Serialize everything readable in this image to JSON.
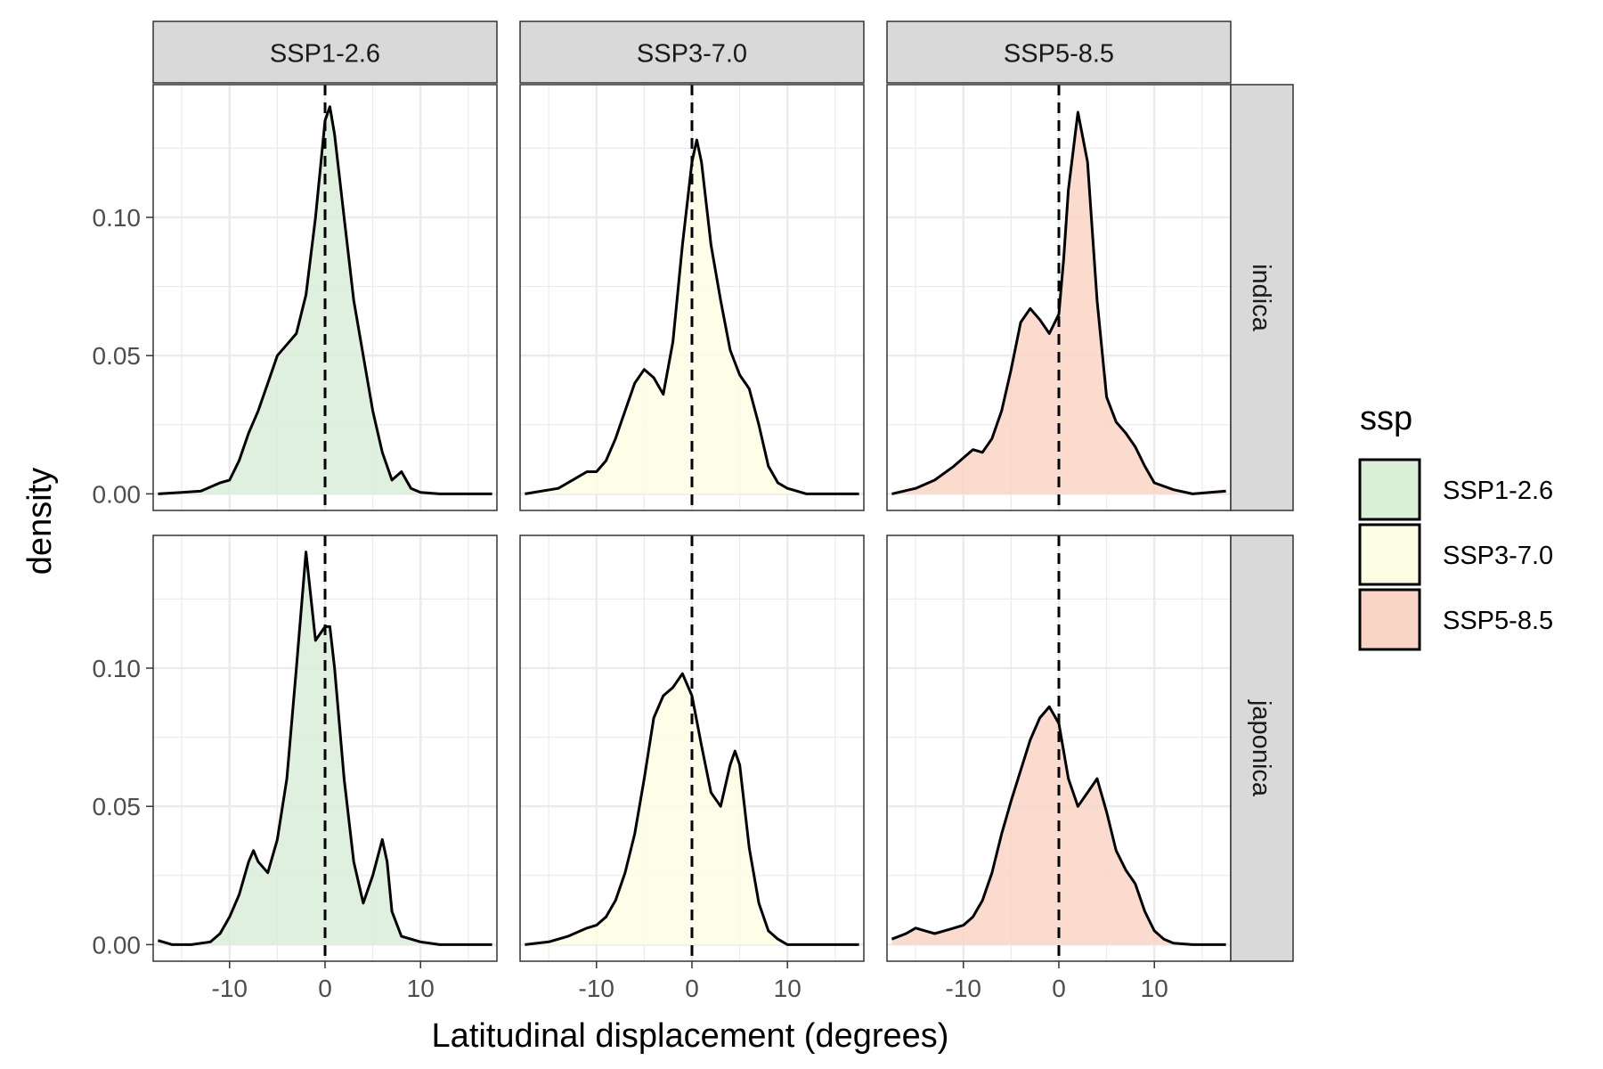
{
  "colors": {
    "SSP1-2.6": "#d9efd8",
    "SSP3-7.0": "#fdfde4",
    "SSP5-8.5": "#f9d5c6",
    "strip_bg": "#d9d9d9",
    "grid": "#ebebeb",
    "line": "#000000"
  },
  "chart_data": {
    "type": "area",
    "subtype": "density",
    "xlabel": "Latitudinal displacement (degrees)",
    "ylabel": "density",
    "xlim": [
      -18,
      18
    ],
    "ylim": [
      -0.006,
      0.148
    ],
    "x_ticks": [
      -10,
      0,
      10
    ],
    "x_tick_labels": [
      "-10",
      "0",
      "10"
    ],
    "y_ticks": [
      0,
      0.05,
      0.1
    ],
    "y_tick_labels": [
      "0.00",
      "0.05",
      "0.10"
    ],
    "grid": true,
    "reference_line": {
      "x": 0,
      "style": "dashed"
    },
    "col_facets": [
      "SSP1-2.6",
      "SSP3-7.0",
      "SSP5-8.5"
    ],
    "row_facets": [
      "indica",
      "japonica"
    ],
    "legend": {
      "title": "ssp",
      "position": "right",
      "entries": [
        "SSP1-2.6",
        "SSP3-7.0",
        "SSP5-8.5"
      ]
    },
    "panels": [
      {
        "row": "indica",
        "col": "SSP1-2.6",
        "x": [
          -17.5,
          -15,
          -13,
          -11,
          -10,
          -9,
          -8,
          -7,
          -6,
          -5,
          -4,
          -3,
          -2,
          -1,
          0,
          0.5,
          1,
          2,
          3,
          4,
          5,
          6,
          7,
          8,
          9,
          10,
          12,
          14,
          17.5
        ],
        "y": [
          0,
          0.0005,
          0.001,
          0.004,
          0.005,
          0.012,
          0.022,
          0.03,
          0.04,
          0.05,
          0.054,
          0.058,
          0.072,
          0.1,
          0.135,
          0.14,
          0.13,
          0.1,
          0.07,
          0.05,
          0.03,
          0.015,
          0.005,
          0.008,
          0.002,
          0.0005,
          0,
          0,
          0
        ]
      },
      {
        "row": "indica",
        "col": "SSP3-7.0",
        "x": [
          -17.5,
          -14,
          -12,
          -11,
          -10,
          -9,
          -8,
          -7,
          -6,
          -5,
          -4,
          -3,
          -2,
          -1,
          0,
          0.5,
          1,
          2,
          3,
          4,
          5,
          6,
          7,
          8,
          9,
          10,
          12,
          14,
          17.5
        ],
        "y": [
          0,
          0.002,
          0.006,
          0.008,
          0.008,
          0.012,
          0.02,
          0.03,
          0.04,
          0.045,
          0.042,
          0.036,
          0.055,
          0.09,
          0.12,
          0.128,
          0.12,
          0.09,
          0.07,
          0.052,
          0.043,
          0.038,
          0.025,
          0.01,
          0.004,
          0.002,
          0,
          0,
          0
        ]
      },
      {
        "row": "indica",
        "col": "SSP5-8.5",
        "x": [
          -17.5,
          -15,
          -13,
          -11,
          -10,
          -9,
          -8,
          -7,
          -6,
          -5,
          -4,
          -3,
          -2,
          -1,
          0,
          0.5,
          1,
          2,
          3,
          4,
          5,
          6,
          7,
          8,
          9,
          10,
          12,
          14,
          17.5
        ],
        "y": [
          0,
          0.002,
          0.005,
          0.01,
          0.013,
          0.016,
          0.015,
          0.02,
          0.03,
          0.045,
          0.062,
          0.067,
          0.063,
          0.058,
          0.065,
          0.085,
          0.11,
          0.138,
          0.12,
          0.07,
          0.035,
          0.026,
          0.022,
          0.017,
          0.01,
          0.004,
          0.0015,
          0,
          0.001
        ]
      },
      {
        "row": "japonica",
        "col": "SSP1-2.6",
        "x": [
          -17.5,
          -16,
          -14,
          -12,
          -11,
          -10,
          -9,
          -8,
          -7.5,
          -7,
          -6,
          -5,
          -4,
          -3,
          -2,
          -1,
          0,
          0.5,
          1,
          2,
          3,
          4,
          5,
          6,
          6.5,
          7,
          8,
          10,
          12,
          14,
          17.5
        ],
        "y": [
          0.0015,
          0,
          0,
          0.001,
          0.004,
          0.01,
          0.018,
          0.03,
          0.034,
          0.03,
          0.026,
          0.038,
          0.06,
          0.1,
          0.142,
          0.11,
          0.115,
          0.115,
          0.1,
          0.06,
          0.03,
          0.015,
          0.025,
          0.038,
          0.03,
          0.012,
          0.003,
          0.001,
          0,
          0,
          0
        ]
      },
      {
        "row": "japonica",
        "col": "SSP3-7.0",
        "x": [
          -17.5,
          -15,
          -13,
          -11,
          -10,
          -9,
          -8,
          -7,
          -6,
          -5,
          -4,
          -3,
          -2,
          -1,
          0,
          1,
          2,
          3,
          4,
          4.5,
          5,
          6,
          7,
          8,
          9,
          10,
          12,
          14,
          17.5
        ],
        "y": [
          0,
          0.001,
          0.003,
          0.006,
          0.007,
          0.01,
          0.016,
          0.026,
          0.04,
          0.06,
          0.082,
          0.09,
          0.093,
          0.098,
          0.09,
          0.072,
          0.055,
          0.05,
          0.065,
          0.07,
          0.065,
          0.035,
          0.015,
          0.005,
          0.002,
          0,
          0,
          0,
          0
        ]
      },
      {
        "row": "japonica",
        "col": "SSP5-8.5",
        "x": [
          -17.5,
          -16,
          -15,
          -14,
          -13,
          -12,
          -11,
          -10,
          -9,
          -8,
          -7,
          -6,
          -5,
          -4,
          -3,
          -2,
          -1,
          0,
          1,
          2,
          3,
          4,
          5,
          6,
          7,
          8,
          9,
          10,
          11,
          12,
          14,
          17.5
        ],
        "y": [
          0.002,
          0.004,
          0.006,
          0.005,
          0.004,
          0.005,
          0.006,
          0.007,
          0.01,
          0.016,
          0.026,
          0.04,
          0.052,
          0.063,
          0.074,
          0.082,
          0.086,
          0.08,
          0.06,
          0.05,
          0.055,
          0.06,
          0.048,
          0.034,
          0.027,
          0.022,
          0.012,
          0.005,
          0.002,
          0.0005,
          0,
          0
        ]
      }
    ]
  }
}
